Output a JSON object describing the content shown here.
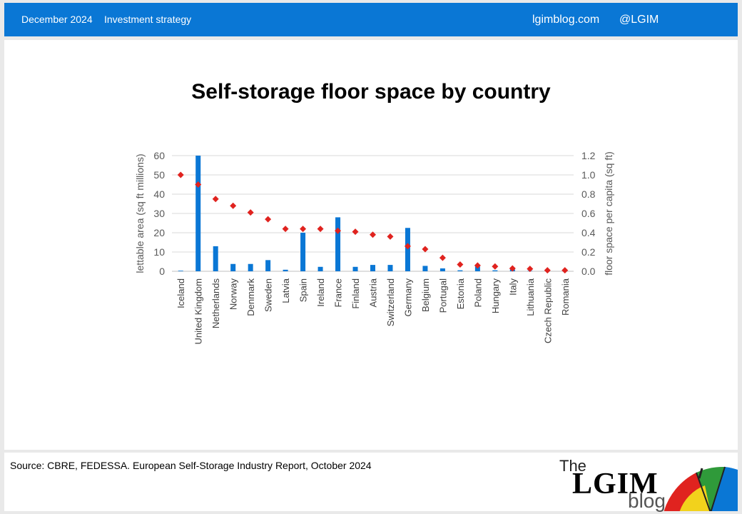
{
  "header": {
    "date": "December 2024",
    "section": "Investment strategy",
    "site": "lgimblog.com",
    "handle": "@LGIM"
  },
  "chart_data": {
    "type": "bar",
    "title": "Self-storage floor space by country",
    "categories": [
      "Iceland",
      "United Kingdom",
      "Netherlands",
      "Norway",
      "Denmark",
      "Sweden",
      "Latvia",
      "Spain",
      "Ireland",
      "France",
      "Finland",
      "Austria",
      "Switzerland",
      "Germany",
      "Belgium",
      "Portugal",
      "Estonia",
      "Poland",
      "Hungary",
      "Italy",
      "Lithuania",
      "Czech Republic",
      "Romania"
    ],
    "series": [
      {
        "name": "lettable area (sq ft millions)",
        "type": "bar",
        "axis": "left",
        "color": "#0a77d5",
        "values": [
          0.3,
          60,
          13,
          3.8,
          3.8,
          5.8,
          0.8,
          20,
          2.3,
          28,
          2.3,
          3.3,
          3.3,
          22.5,
          2.8,
          1.5,
          0.5,
          2.5,
          0.5,
          1,
          0.2,
          0.3,
          0.2
        ]
      },
      {
        "name": "floor space per capita (sq ft)",
        "type": "scatter",
        "axis": "right",
        "color": "#e0231f",
        "values": [
          1.0,
          0.9,
          0.75,
          0.68,
          0.61,
          0.54,
          0.44,
          0.44,
          0.44,
          0.42,
          0.41,
          0.38,
          0.36,
          0.26,
          0.23,
          0.14,
          0.07,
          0.06,
          0.05,
          0.03,
          0.025,
          0.01,
          0.01
        ]
      }
    ],
    "ylabel": "lettable area (sq ft millions)",
    "ylabel_right": "floor space per capita (sq ft)",
    "ylim": [
      0,
      60
    ],
    "ylim_right": [
      0,
      1.2
    ],
    "yticks": [
      "0",
      "10",
      "20",
      "30",
      "40",
      "50",
      "60"
    ],
    "yticks_right": [
      "0.0",
      "0.2",
      "0.4",
      "0.6",
      "0.8",
      "1.0",
      "1.2"
    ],
    "grid": true,
    "legend": "none"
  },
  "footer": {
    "source": "Source: CBRE, FEDESSA. European Self-Storage Industry Report, October 2024",
    "logo_the": "The",
    "logo_name": "LGIM",
    "logo_blog": "blog"
  }
}
